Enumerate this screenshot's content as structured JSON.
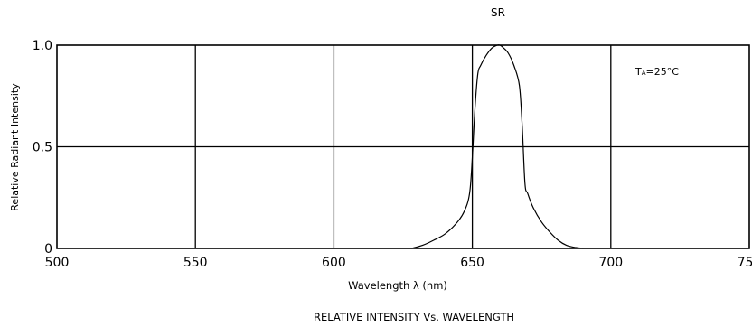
{
  "chart_data": {
    "type": "line",
    "title": "SR",
    "caption": "RELATIVE INTENSITY Vs. WAVELENGTH",
    "annotation": {
      "main": "T",
      "sub": "A",
      "rest": "=25°C"
    },
    "xlabel": "Wavelength  λ  (nm)",
    "ylabel": "Relative Radiant Intensity",
    "xlim": [
      500,
      750
    ],
    "ylim": [
      0,
      1.0
    ],
    "xticks": [
      500,
      550,
      600,
      650,
      700,
      750
    ],
    "xtick_labels": [
      "500",
      "550",
      "600",
      "650",
      "700",
      "750"
    ],
    "yticks": [
      0,
      0.5,
      1.0
    ],
    "ytick_labels": [
      "0",
      "0.5",
      "1.0"
    ],
    "grid": true,
    "series": [
      {
        "x": [
          628,
          632,
          636,
          640,
          644,
          647,
          649,
          650,
          651,
          652,
          653,
          655,
          657,
          659,
          660,
          661,
          663,
          665,
          667,
          668,
          669,
          670,
          672,
          675,
          678,
          681,
          684,
          687,
          690
        ],
        "y": [
          0.0,
          0.015,
          0.04,
          0.07,
          0.12,
          0.18,
          0.27,
          0.45,
          0.7,
          0.86,
          0.9,
          0.95,
          0.985,
          1.0,
          1.0,
          0.99,
          0.96,
          0.9,
          0.8,
          0.6,
          0.32,
          0.27,
          0.2,
          0.13,
          0.08,
          0.04,
          0.015,
          0.005,
          0.0
        ]
      }
    ]
  }
}
